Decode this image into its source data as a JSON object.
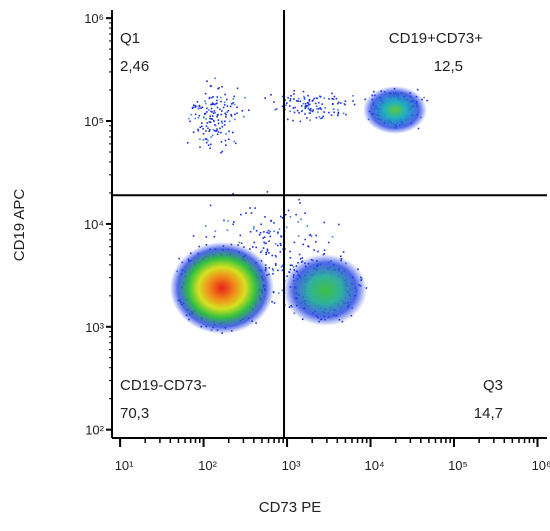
{
  "chart_data": {
    "type": "quadrant-scatter",
    "x_label": "CD73 PE",
    "y_label": "CD19 APC",
    "log_x": true,
    "log_y": true,
    "xlim": [
      8,
      1300000
    ],
    "ylim": [
      83,
      1200000
    ],
    "xticks": [
      {
        "value": 10,
        "label": "10¹"
      },
      {
        "value": 100,
        "label": "10²"
      },
      {
        "value": 1000,
        "label": "10³"
      },
      {
        "value": 10000,
        "label": "10⁴"
      },
      {
        "value": 100000,
        "label": "10⁵"
      },
      {
        "value": 1000000,
        "label": "10⁶"
      }
    ],
    "yticks": [
      {
        "value": 100,
        "label": "10²"
      },
      {
        "value": 1000,
        "label": "10³"
      },
      {
        "value": 10000,
        "label": "10⁴"
      },
      {
        "value": 100000,
        "label": "10⁵"
      },
      {
        "value": 1000000,
        "label": "10⁶"
      }
    ],
    "gate_x": 920,
    "gate_y": 19000,
    "quadrant_names": [
      "Q1",
      "CD19+CD73+",
      "CD19-CD73-",
      "Q3"
    ],
    "values": [
      2.46,
      12.5,
      70.3,
      14.7
    ],
    "value_labels": [
      "2,46",
      "12,5",
      "70,3",
      "14,7"
    ]
  }
}
